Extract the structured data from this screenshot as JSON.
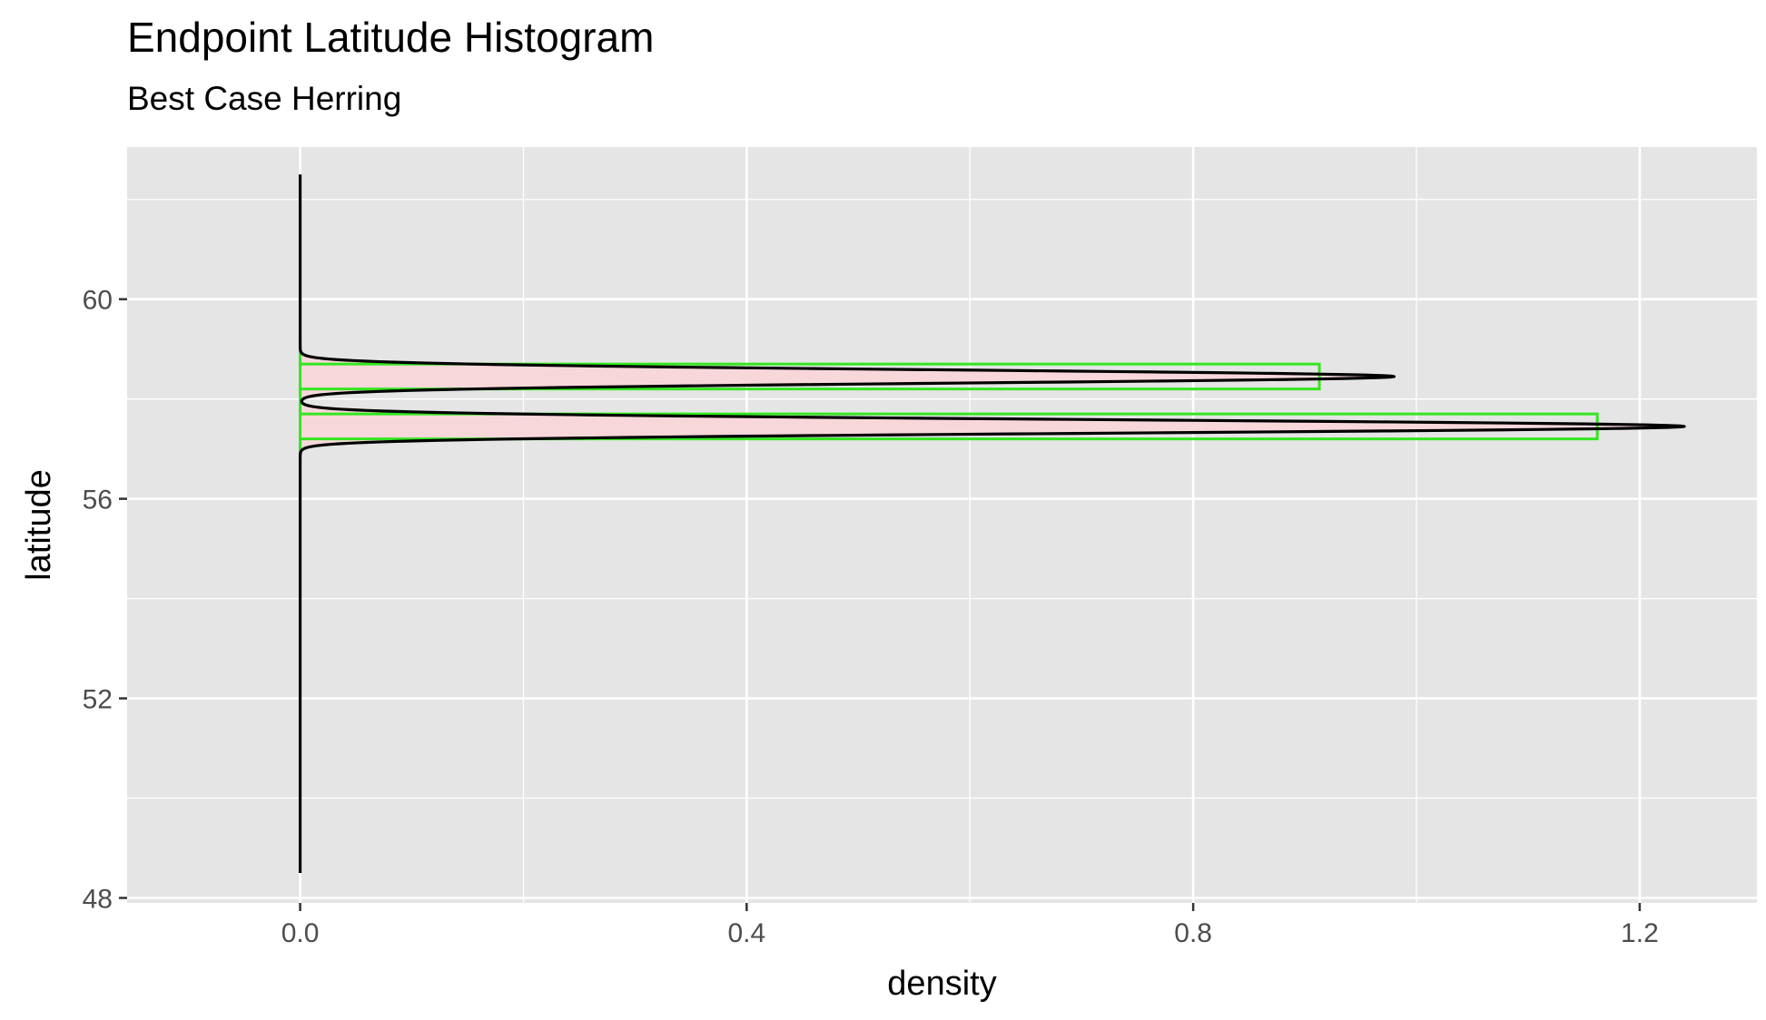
{
  "chart_data": {
    "type": "histogram",
    "title": "Endpoint Latitude Histogram",
    "subtitle": "Best Case Herring",
    "xlabel": "density",
    "ylabel": "latitude",
    "xlim": [
      -0.155,
      1.305
    ],
    "ylim": [
      47.9,
      63.05
    ],
    "x_ticks": [
      0.0,
      0.4,
      0.8,
      1.2
    ],
    "x_tick_labels": [
      "0.0",
      "0.4",
      "0.8",
      "1.2"
    ],
    "y_ticks": [
      48,
      52,
      56,
      60
    ],
    "y_tick_labels": [
      "48",
      "52",
      "56",
      "60"
    ],
    "grid": true,
    "bins": [
      {
        "lat_min": 58.7,
        "lat_max": 59.2,
        "density": 0.0
      },
      {
        "lat_min": 58.2,
        "lat_max": 58.7,
        "density": 0.913
      },
      {
        "lat_min": 57.7,
        "lat_max": 58.2,
        "density": 0.0
      },
      {
        "lat_min": 57.2,
        "lat_max": 57.7,
        "density": 1.162
      },
      {
        "lat_min": 56.7,
        "lat_max": 57.2,
        "density": 0.0
      }
    ],
    "density_curve": {
      "lat_range": [
        48.5,
        62.5
      ],
      "peaks": [
        {
          "latitude": 58.45,
          "density": 0.98
        },
        {
          "latitude": 57.45,
          "density": 1.24
        }
      ],
      "trough": {
        "latitude": 57.95,
        "density": 0.05
      }
    },
    "colors": {
      "panel_background": "#e5e5e5",
      "grid": "#ffffff",
      "bar_outline": "#33e61f",
      "density_fill": "#f8d7da",
      "density_line": "#000000"
    }
  }
}
